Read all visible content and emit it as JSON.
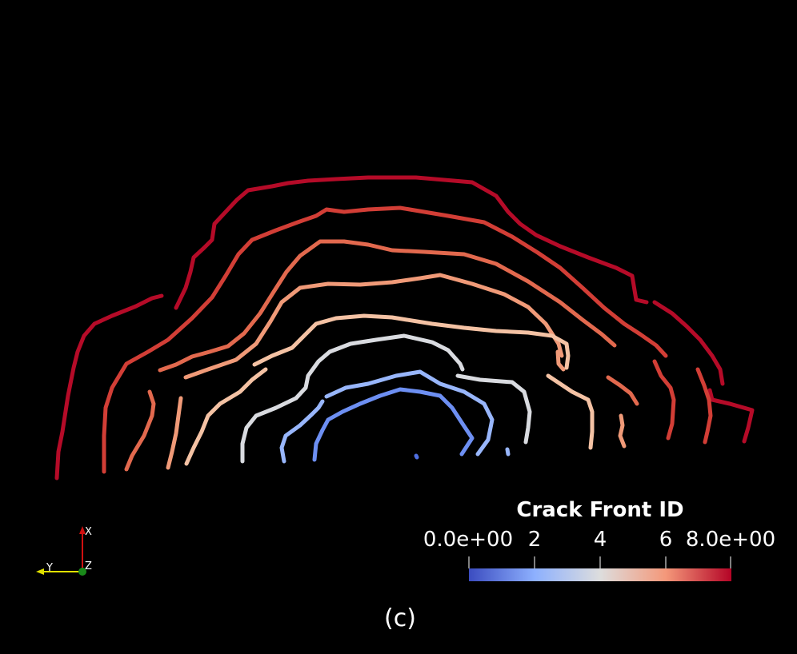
{
  "colorbar": {
    "title": "Crack Front ID",
    "tick_labels": [
      "0.0e+00",
      "2",
      "4",
      "6",
      "8.0e+00"
    ],
    "range": [
      0,
      8
    ],
    "colors": [
      "#3b4cc0",
      "#8db0fe",
      "#dddddd",
      "#f4987a",
      "#b40426"
    ]
  },
  "axes_widget": {
    "x_label": "X",
    "y_label": "Y",
    "z_label": "Z",
    "colors": {
      "x": "#d01010",
      "y": "#e0e000",
      "z": "#1a8a1a"
    }
  },
  "caption": "(c)",
  "crack_fronts": [
    {
      "id": 0,
      "color": "#4f6fe0"
    },
    {
      "id": 1,
      "color": "#6d8ff2"
    },
    {
      "id": 2,
      "color": "#98b6fb"
    },
    {
      "id": 3,
      "color": "#d9dbe0"
    },
    {
      "id": 4,
      "color": "#f4c2a4"
    },
    {
      "id": 5,
      "color": "#f09a78"
    },
    {
      "id": 6,
      "color": "#e2694e"
    },
    {
      "id": 7,
      "color": "#d23e36"
    },
    {
      "id": 8,
      "color": "#b50b28"
    }
  ]
}
